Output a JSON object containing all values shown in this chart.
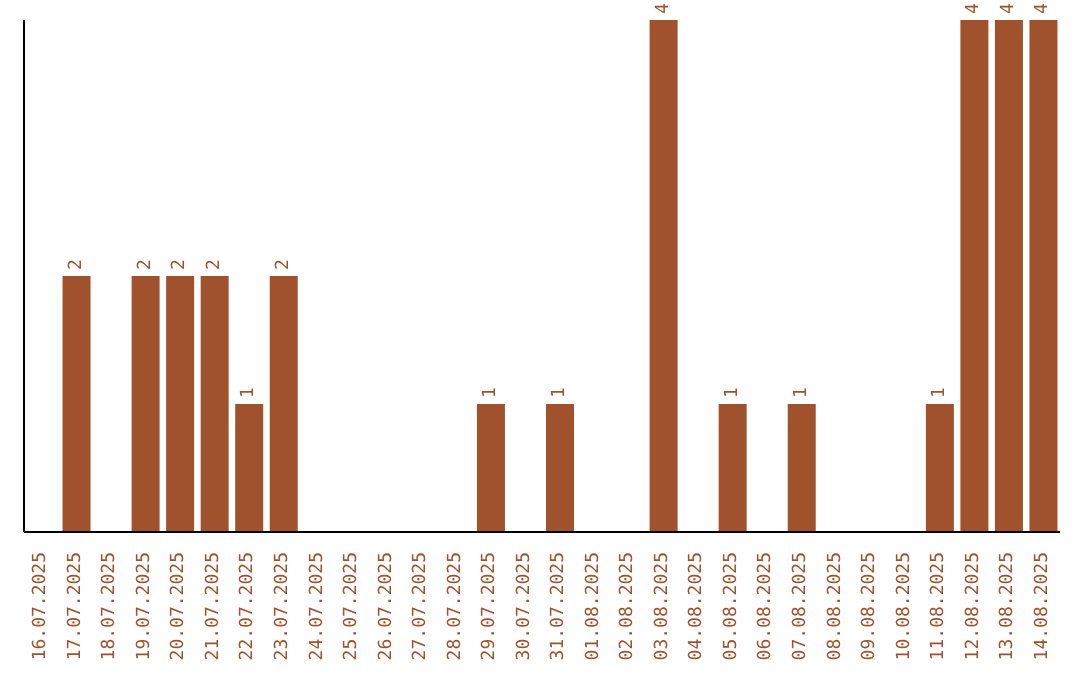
{
  "chart_data": {
    "type": "bar",
    "categories": [
      "16.07.2025",
      "17.07.2025",
      "18.07.2025",
      "19.07.2025",
      "20.07.2025",
      "21.07.2025",
      "22.07.2025",
      "23.07.2025",
      "24.07.2025",
      "25.07.2025",
      "26.07.2025",
      "27.07.2025",
      "28.07.2025",
      "29.07.2025",
      "30.07.2025",
      "31.07.2025",
      "01.08.2025",
      "02.08.2025",
      "03.08.2025",
      "04.08.2025",
      "05.08.2025",
      "06.08.2025",
      "07.08.2025",
      "08.08.2025",
      "09.08.2025",
      "10.08.2025",
      "11.08.2025",
      "12.08.2025",
      "13.08.2025",
      "14.08.2025"
    ],
    "values": [
      0,
      2,
      0,
      2,
      2,
      2,
      1,
      2,
      0,
      0,
      0,
      0,
      0,
      1,
      0,
      1,
      0,
      0,
      4,
      0,
      1,
      0,
      1,
      0,
      0,
      0,
      1,
      4,
      4,
      4
    ],
    "value_labels": [
      null,
      "2",
      null,
      "2",
      "2",
      "2",
      "1",
      "2",
      null,
      null,
      null,
      null,
      null,
      "1",
      null,
      "1",
      null,
      null,
      "4",
      null,
      "1",
      null,
      "1",
      null,
      null,
      null,
      "1",
      "4",
      "4",
      "4"
    ],
    "color": "#a0522d",
    "tick_labels": "x",
    "grid": false,
    "legend": false
  }
}
